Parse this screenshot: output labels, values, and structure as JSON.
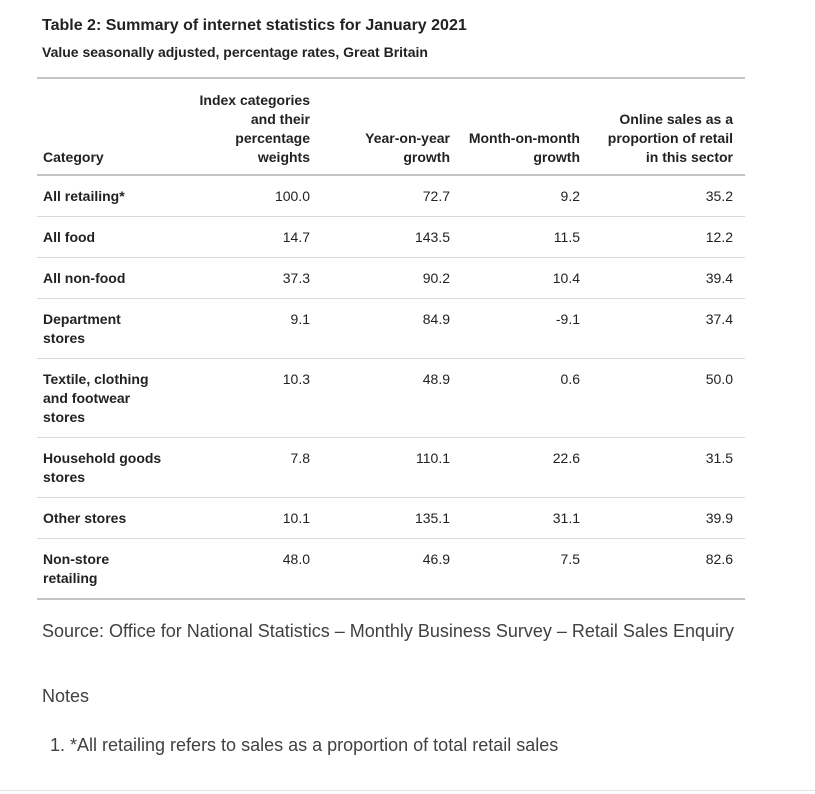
{
  "table": {
    "title": "Table 2: Summary of internet statistics for January 2021",
    "subtitle": "Value seasonally adjusted, percentage rates, Great Britain",
    "columns": [
      "Category",
      "Index categories and their percentage weights",
      "Year-on-year growth",
      "Month-on-month growth",
      "Online sales as a proportion of retail in this sector"
    ],
    "rows": [
      {
        "category": "All retailing*",
        "weights": "100.0",
        "yoy": "72.7",
        "mom": "9.2",
        "online": "35.2"
      },
      {
        "category": "All food",
        "weights": "14.7",
        "yoy": "143.5",
        "mom": "11.5",
        "online": "12.2"
      },
      {
        "category": "All non-food",
        "weights": "37.3",
        "yoy": "90.2",
        "mom": "10.4",
        "online": "39.4"
      },
      {
        "category": "Department stores",
        "weights": "9.1",
        "yoy": "84.9",
        "mom": "-9.1",
        "online": "37.4"
      },
      {
        "category": "Textile, clothing and footwear stores",
        "weights": "10.3",
        "yoy": "48.9",
        "mom": "0.6",
        "online": "50.0"
      },
      {
        "category": "Household goods stores",
        "weights": "7.8",
        "yoy": "110.1",
        "mom": "22.6",
        "online": "31.5"
      },
      {
        "category": "Other stores",
        "weights": "10.1",
        "yoy": "135.1",
        "mom": "31.1",
        "online": "39.9"
      },
      {
        "category": "Non-store retailing",
        "weights": "48.0",
        "yoy": "46.9",
        "mom": "7.5",
        "online": "82.6"
      }
    ]
  },
  "source": "Source: Office for National Statistics – Monthly Business Survey – Retail Sales Enquiry",
  "notes": {
    "heading": "Notes",
    "items": [
      "*All retailing refers to sales as a proportion of total retail sales"
    ]
  },
  "colors": {
    "table_text": "#222222",
    "body_text": "#414042",
    "border_strong": "#c3c3c3",
    "border_light": "#d9d9d9",
    "background": "#ffffff"
  },
  "chart_data": {
    "type": "table",
    "title": "Table 2: Summary of internet statistics for January 2021",
    "subtitle": "Value seasonally adjusted, percentage rates, Great Britain",
    "columns": [
      "Category",
      "Index categories and their percentage weights",
      "Year-on-year growth",
      "Month-on-month growth",
      "Online sales as a proportion of retail in this sector"
    ],
    "rows": [
      [
        "All retailing*",
        100.0,
        72.7,
        9.2,
        35.2
      ],
      [
        "All food",
        14.7,
        143.5,
        11.5,
        12.2
      ],
      [
        "All non-food",
        37.3,
        90.2,
        10.4,
        39.4
      ],
      [
        "Department stores",
        9.1,
        84.9,
        -9.1,
        37.4
      ],
      [
        "Textile, clothing and footwear stores",
        10.3,
        48.9,
        0.6,
        50.0
      ],
      [
        "Household goods stores",
        7.8,
        110.1,
        22.6,
        31.5
      ],
      [
        "Other stores",
        10.1,
        135.1,
        31.1,
        39.9
      ],
      [
        "Non-store retailing",
        48.0,
        46.9,
        7.5,
        82.6
      ]
    ]
  }
}
